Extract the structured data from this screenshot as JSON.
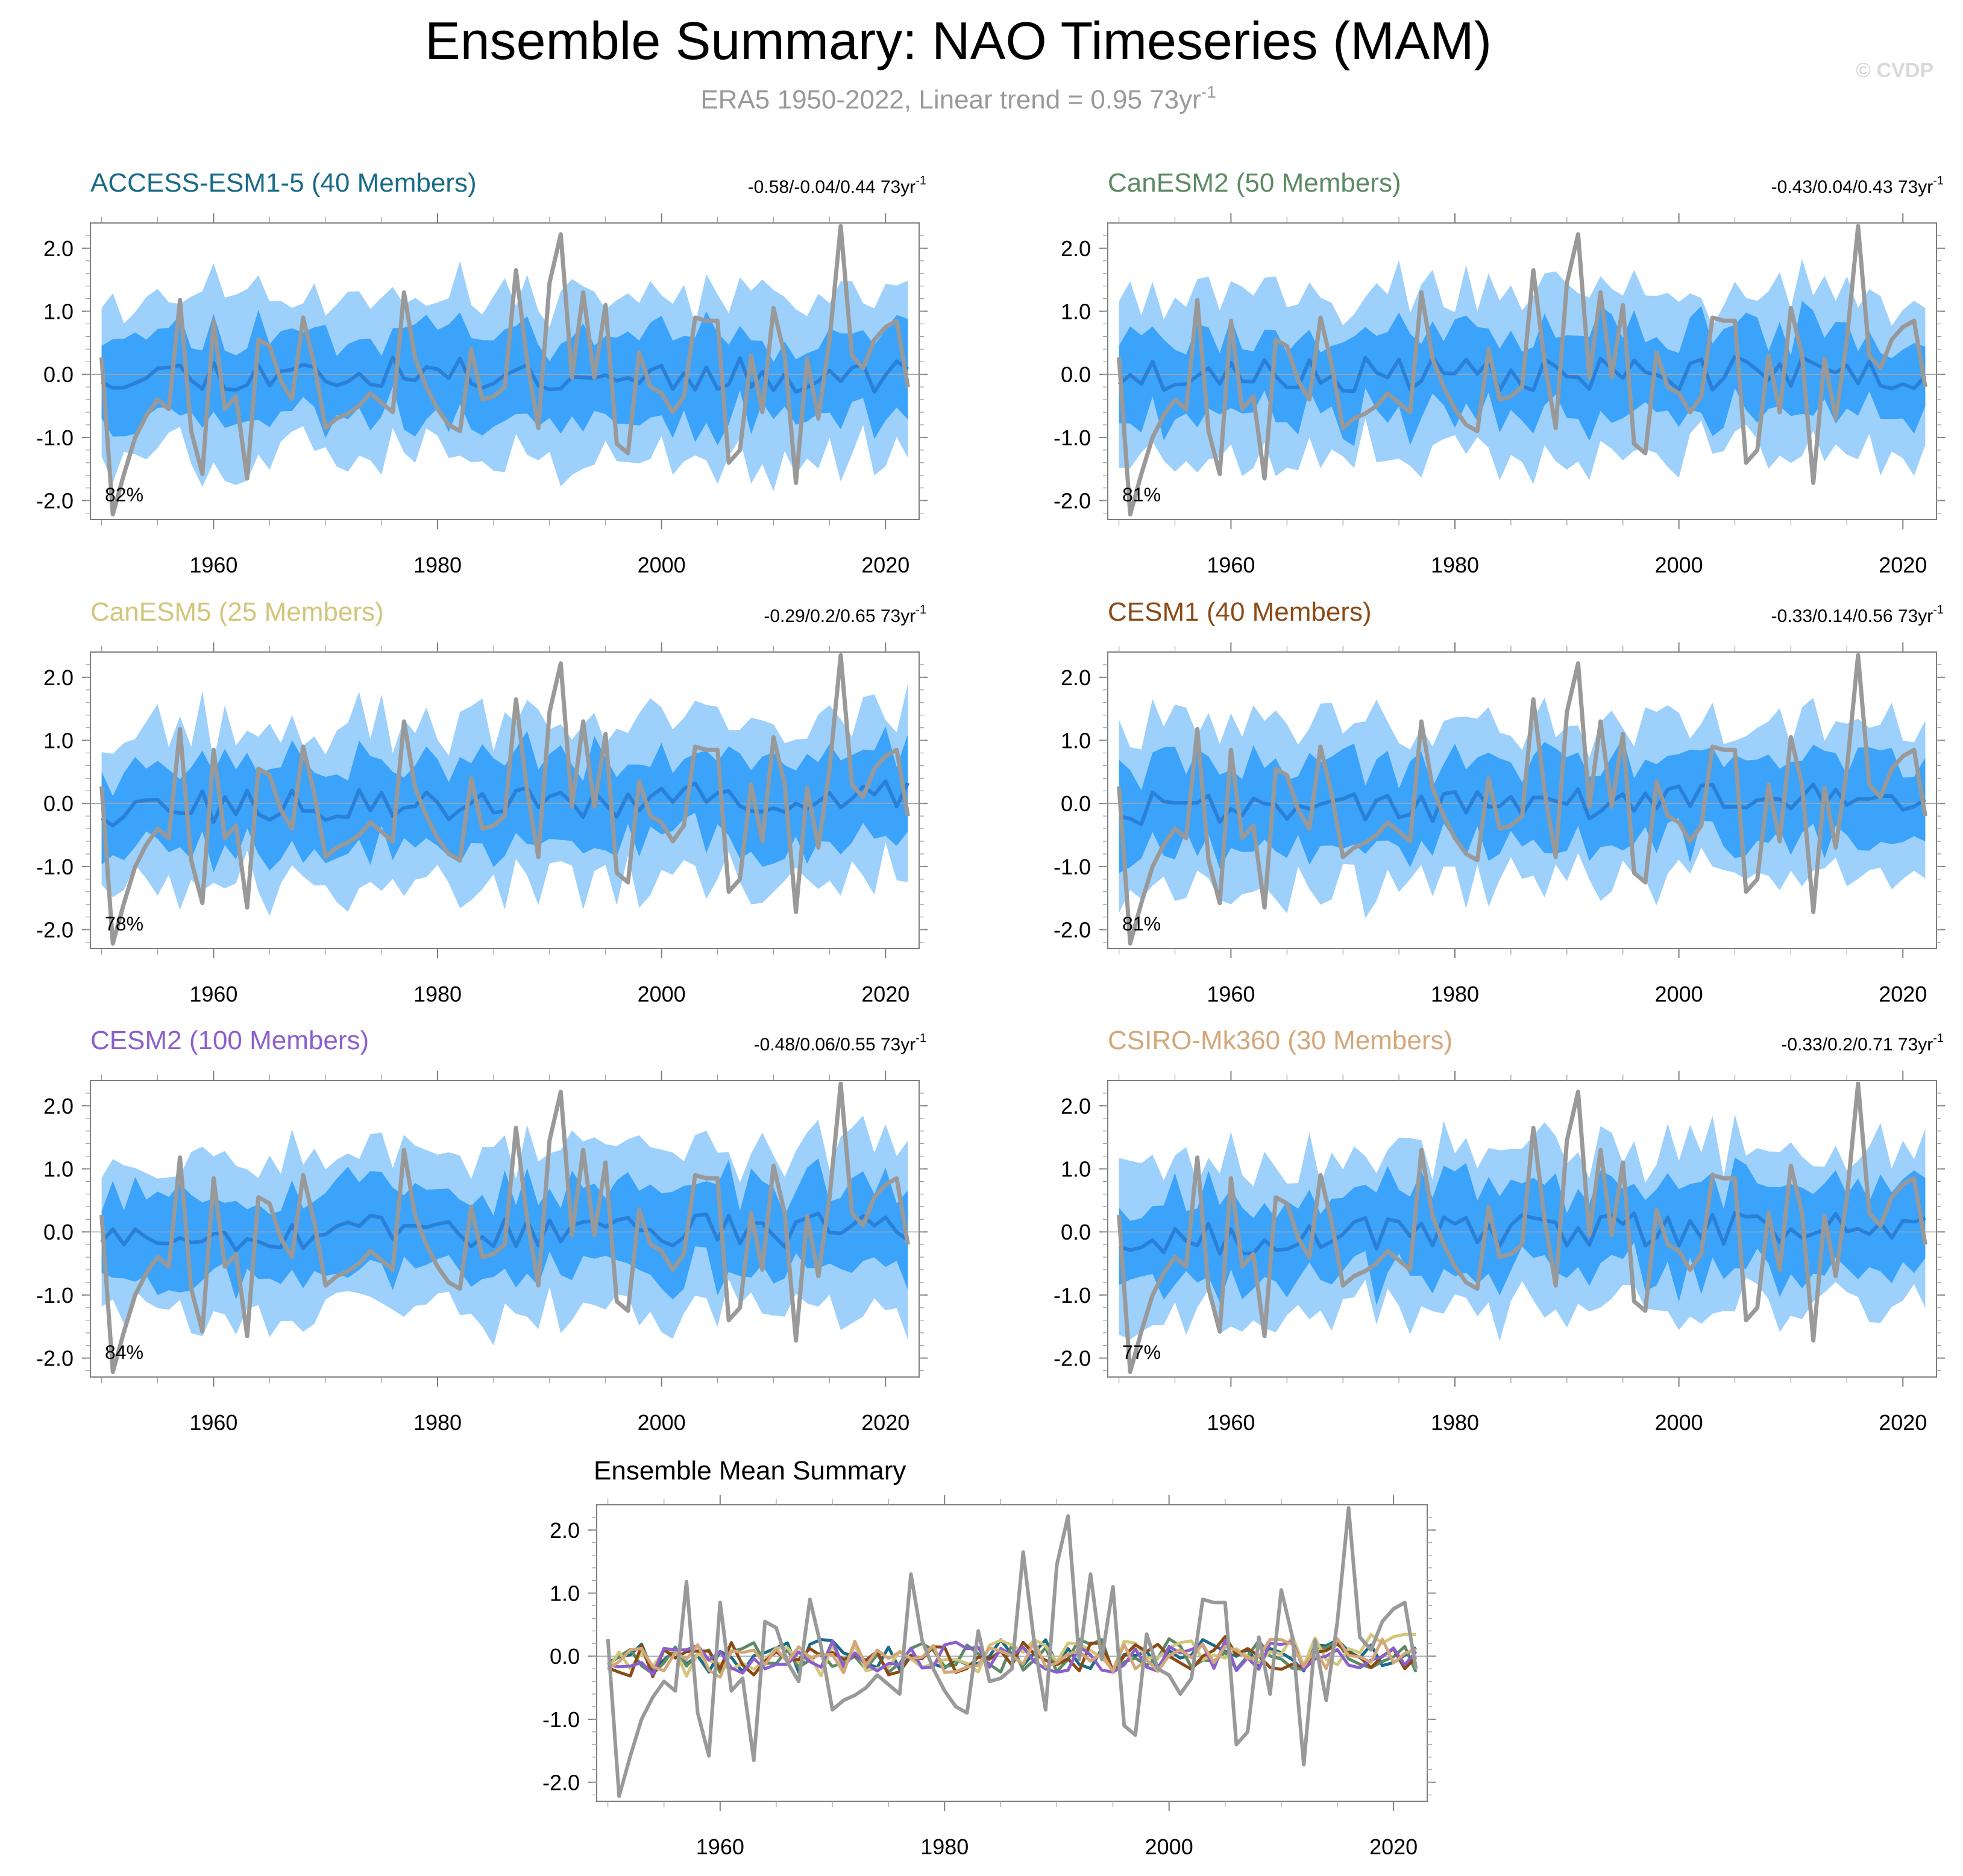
{
  "title": "Ensemble Summary: NAO Timeseries (MAM)",
  "subtitle": {
    "text": "ERA5 1950-2022, Linear trend = 0.95 73yr",
    "sup": "-1"
  },
  "watermark": "© CVDP",
  "colors": {
    "outer_band": "#9dd0fb",
    "inner_band": "#3ba3fa",
    "ens_mean_line": "#2a7fd6",
    "obs_line": "#999999"
  },
  "observations": {
    "name": "ERA5",
    "years": [
      1950,
      2022
    ],
    "values": [
      0.27,
      -2.22,
      -1.58,
      -1.0,
      -0.65,
      -0.4,
      -0.55,
      1.18,
      -0.9,
      -1.58,
      0.85,
      -0.55,
      -0.35,
      -1.65,
      0.55,
      0.45,
      -0.1,
      -0.4,
      0.9,
      0.15,
      -0.85,
      -0.7,
      -0.62,
      -0.5,
      -0.3,
      -0.45,
      -0.6,
      1.3,
      0.25,
      -0.2,
      -0.55,
      -0.8,
      -0.9,
      0.4,
      -0.4,
      -0.35,
      -0.2,
      1.65,
      0.2,
      -0.85,
      1.45,
      2.22,
      -0.05,
      1.3,
      -0.05,
      1.1,
      -1.1,
      -1.25,
      0.35,
      -0.2,
      -0.3,
      -0.6,
      -0.35,
      0.9,
      0.85,
      0.85,
      -1.4,
      -1.2,
      0.3,
      -0.6,
      1.05,
      0.3,
      -1.72,
      0.25,
      -0.7,
      0.55,
      2.35,
      0.3,
      0.1,
      0.55,
      0.75,
      0.85,
      -0.2
    ]
  },
  "panels": [
    {
      "model": "ACCESS-ESM1-5",
      "title": "ACCESS-ESM1-5 (40 Members)",
      "color": "#1a6b87",
      "stats": "-0.58/-0.04/0.44 73yr",
      "stats_sup": "-1",
      "pct": "82%",
      "seed": 11,
      "ens_mean_trend": -0.04
    },
    {
      "model": "CanESM2",
      "title": "CanESM2 (50 Members)",
      "color": "#5b8a63",
      "stats": "-0.43/0.04/0.43 73yr",
      "stats_sup": "-1",
      "pct": "81%",
      "seed": 23,
      "ens_mean_trend": 0.04
    },
    {
      "model": "CanESM5",
      "title": "CanESM5 (25 Members)",
      "color": "#d3c57a",
      "stats": "-0.29/0.2/0.65 73yr",
      "stats_sup": "-1",
      "pct": "78%",
      "seed": 37,
      "ens_mean_trend": 0.2
    },
    {
      "model": "CESM1",
      "title": "CESM1 (40 Members)",
      "color": "#8b4a14",
      "stats": "-0.33/0.14/0.56 73yr",
      "stats_sup": "-1",
      "pct": "81%",
      "seed": 41,
      "ens_mean_trend": 0.14
    },
    {
      "model": "CESM2",
      "title": "CESM2 (100 Members)",
      "color": "#8a5fcf",
      "stats": "-0.48/0.06/0.55 73yr",
      "stats_sup": "-1",
      "pct": "84%",
      "seed": 53,
      "ens_mean_trend": 0.06
    },
    {
      "model": "CSIRO-Mk360",
      "title": "CSIRO-Mk360 (30 Members)",
      "color": "#d4a77a",
      "stats": "-0.33/0.2/0.71 73yr",
      "stats_sup": "-1",
      "pct": "77%",
      "seed": 67,
      "ens_mean_trend": 0.2
    }
  ],
  "ensemble_summary": {
    "title": "Ensemble Mean Summary"
  },
  "chart_data": {
    "type": "line",
    "title": "Ensemble Summary: NAO Timeseries (MAM)",
    "xlim": [
      1949,
      2023
    ],
    "ylim": [
      -2.3,
      2.4
    ],
    "xticks": [
      1960,
      1980,
      2000,
      2020
    ],
    "yticks": [
      2.0,
      1.0,
      0.0,
      -1.0,
      -2.0
    ],
    "xtick_labels": [
      "1960",
      "1980",
      "2000",
      "2020"
    ],
    "ytick_labels": [
      "2.0",
      "1.0",
      "0.0",
      "-1.0",
      "-2.0"
    ],
    "bands": [
      "2.5%-97.5% ensemble spread",
      "25%-75% ensemble spread"
    ],
    "notes": "Seven subplots: six model panels with ensemble spread bands, ensemble mean and ERA5 observed series; one summary of all ensemble means."
  }
}
